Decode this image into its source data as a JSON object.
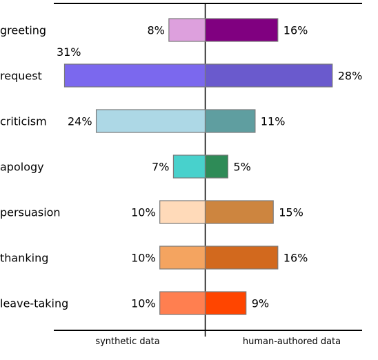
{
  "chart_data": {
    "type": "bar",
    "orientation": "horizontal-diverging",
    "categories": [
      "greeting",
      "request",
      "criticism",
      "apology",
      "persuasion",
      "thanking",
      "leave-taking"
    ],
    "series": [
      {
        "name": "synthetic data",
        "values": [
          8,
          31,
          24,
          7,
          10,
          10,
          10
        ],
        "labels": [
          "8%",
          "31%",
          "24%",
          "7%",
          "10%",
          "10%",
          "10%"
        ],
        "colors": [
          "#dda0dd",
          "#7b68ee",
          "#add8e6",
          "#48d1cc",
          "#ffdab9",
          "#f4a460",
          "#ff7f50"
        ]
      },
      {
        "name": "human-authored data",
        "values": [
          16,
          28,
          11,
          5,
          15,
          16,
          9
        ],
        "labels": [
          "16%",
          "28%",
          "11%",
          "5%",
          "15%",
          "16%",
          "9%"
        ],
        "colors": [
          "#800080",
          "#6a5acd",
          "#5f9ea0",
          "#2e8b57",
          "#cd853f",
          "#d2691e",
          "#ff4500"
        ]
      }
    ],
    "unit": "%",
    "xlim": [
      -31,
      31
    ],
    "grid": false
  }
}
